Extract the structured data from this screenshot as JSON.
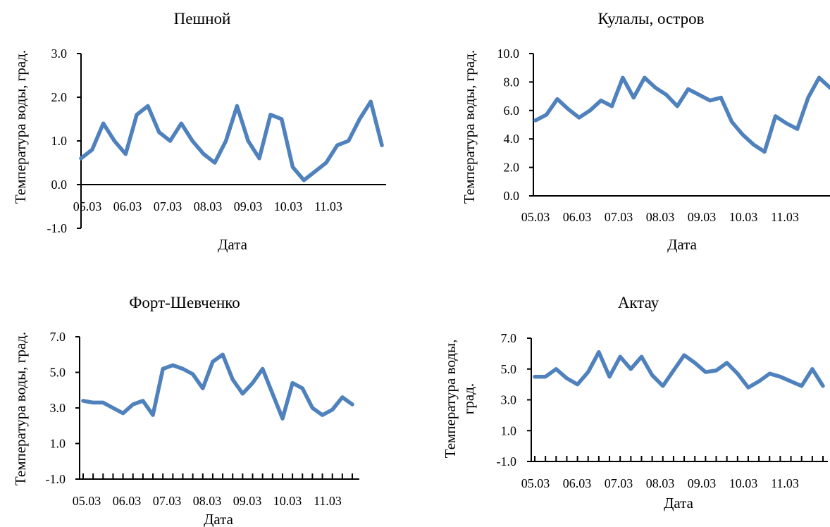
{
  "chart_data": [
    {
      "type": "line",
      "title": "Пешной",
      "xlabel": "Дата",
      "ylabel": "Температура  воды, град.",
      "ylim": [
        -1.0,
        3.0
      ],
      "yticks": [
        "3.0",
        "2.0",
        "1.0",
        "0.0",
        "-1.0"
      ],
      "xticks": [
        "05.03",
        "06.03",
        "07.03",
        "08.03",
        "09.03",
        "10.03",
        "11.03"
      ],
      "color": "#4f81bd",
      "series": [
        {
          "values": [
            0.6,
            0.8,
            1.4,
            1.0,
            0.7,
            1.6,
            1.8,
            1.2,
            1.0,
            1.4,
            1.0,
            0.7,
            0.5,
            1.0,
            1.8,
            1.0,
            0.6,
            1.6,
            1.5,
            0.4,
            0.1,
            0.3,
            0.5,
            0.9,
            1.0,
            1.5,
            1.9,
            0.9
          ]
        }
      ]
    },
    {
      "type": "line",
      "title": "Кулалы,  остров",
      "xlabel": "Дата",
      "ylabel": "Температура  воды, град.",
      "ylim": [
        0.0,
        10.0
      ],
      "yticks": [
        "10.0",
        "8.0",
        "6.0",
        "4.0",
        "2.0",
        "0.0"
      ],
      "xticks": [
        "05.03",
        "06.03",
        "07.03",
        "08.03",
        "09.03",
        "10.03",
        "11.03"
      ],
      "color": "#4f81bd",
      "series": [
        {
          "values": [
            5.3,
            5.7,
            6.8,
            6.1,
            5.5,
            6.0,
            6.7,
            6.3,
            8.3,
            6.9,
            8.3,
            7.6,
            7.1,
            6.3,
            7.5,
            7.1,
            6.7,
            6.9,
            5.2,
            4.3,
            3.6,
            3.1,
            5.6,
            5.1,
            4.7,
            6.9,
            8.3,
            7.6
          ]
        }
      ]
    },
    {
      "type": "line",
      "title": "Форт-Шевченко",
      "xlabel": "Дата",
      "ylabel": "Температура  воды, град.",
      "ylim": [
        -1.0,
        7.0
      ],
      "yticks": [
        "7.0",
        "5.0",
        "3.0",
        "1.0",
        "-1.0"
      ],
      "xticks": [
        "05.03",
        "06.03",
        "07.03",
        "08.03",
        "09.03",
        "10.03",
        "11.03"
      ],
      "color": "#4f81bd",
      "series": [
        {
          "values": [
            3.4,
            3.3,
            3.3,
            3.0,
            2.7,
            3.2,
            3.4,
            2.6,
            5.2,
            5.4,
            5.2,
            4.9,
            4.1,
            5.6,
            6.0,
            4.6,
            3.8,
            4.4,
            5.2,
            3.8,
            2.4,
            4.4,
            4.1,
            3.0,
            2.6,
            2.9,
            3.6,
            3.2
          ]
        }
      ]
    },
    {
      "type": "line",
      "title": "Актау",
      "xlabel": "Дата",
      "ylabel": "Температура  воды, град.",
      "ylim": [
        -1.0,
        7.0
      ],
      "yticks": [
        "7.0",
        "5.0",
        "3.0",
        "1.0",
        "-1.0"
      ],
      "xticks": [
        "05.03",
        "06.03",
        "07.03",
        "08.03",
        "09.03",
        "10.03",
        "11.03"
      ],
      "color": "#4f81bd",
      "series": [
        {
          "values": [
            4.5,
            4.5,
            5.0,
            4.4,
            4.0,
            4.8,
            6.1,
            4.5,
            5.8,
            5.0,
            5.8,
            4.6,
            3.9,
            4.9,
            5.9,
            5.4,
            4.8,
            4.9,
            5.4,
            4.7,
            3.8,
            4.2,
            4.7,
            4.5,
            4.2,
            3.9,
            5.0,
            3.9
          ]
        }
      ]
    }
  ]
}
